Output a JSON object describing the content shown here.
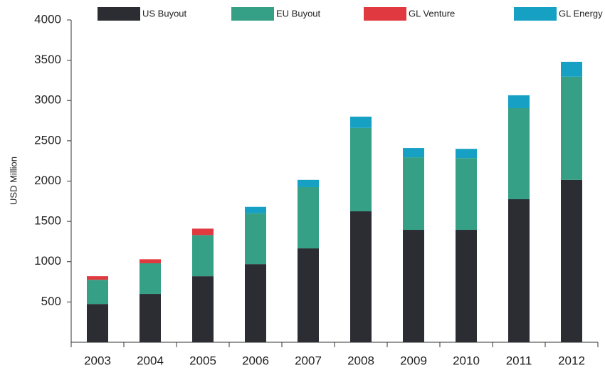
{
  "chart_data": {
    "type": "stacked-bar",
    "y_label": "USD Million",
    "categories": [
      "2003",
      "2004",
      "2005",
      "2006",
      "2007",
      "2008",
      "2009",
      "2010",
      "2011",
      "2012"
    ],
    "series": [
      {
        "name": "US Buyout",
        "color": "#2b2d33",
        "values": [
          475,
          600,
          820,
          970,
          1165,
          1625,
          1395,
          1395,
          1775,
          2015
        ]
      },
      {
        "name": "EU Buyout",
        "color": "#35a085",
        "values": [
          300,
          380,
          510,
          630,
          760,
          1035,
          900,
          890,
          1130,
          1280
        ]
      },
      {
        "name": "GL Venture",
        "color": "#e0393f",
        "values": [
          45,
          50,
          80,
          0,
          0,
          0,
          0,
          0,
          0,
          0
        ]
      },
      {
        "name": "GL Energy",
        "color": "#16a0c4",
        "values": [
          0,
          0,
          0,
          80,
          90,
          140,
          115,
          115,
          160,
          185
        ]
      }
    ],
    "ylim": [
      0,
      4000
    ],
    "yticks": [
      500,
      1000,
      1500,
      2000,
      2500,
      3000,
      3500,
      4000
    ],
    "legend": "top"
  }
}
